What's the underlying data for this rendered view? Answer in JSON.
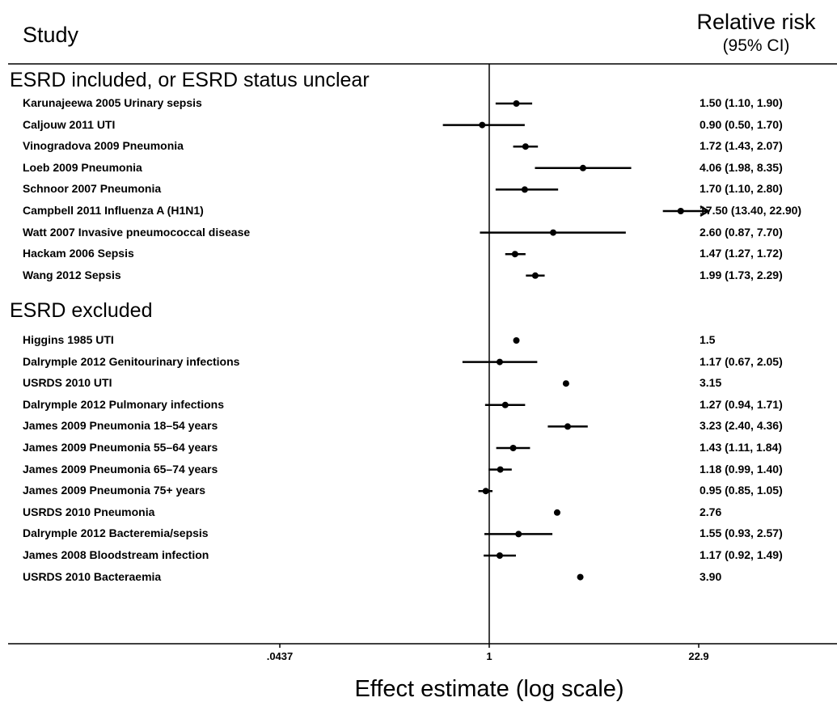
{
  "header": {
    "study": "Study",
    "relative_risk": "Relative risk",
    "ci": "(95% CI)"
  },
  "chart_data": {
    "type": "forest",
    "xlabel": "Effect estimate (log scale)",
    "x_scale": "log",
    "reference_line": 1,
    "xticks": [
      {
        "value": 0.0437,
        "label": ".0437"
      },
      {
        "value": 1,
        "label": "1"
      },
      {
        "value": 22.9,
        "label": "22.9"
      }
    ],
    "xlim": [
      0.0437,
      22.9
    ],
    "groups": [
      {
        "title": "ESRD included, or ESRD status unclear",
        "studies": [
          {
            "label": "Karunajeewa 2005 Urinary sepsis",
            "est": 1.5,
            "lo": 1.1,
            "hi": 1.9,
            "text": "1.50 (1.10, 1.90)"
          },
          {
            "label": "Caljouw 2011 UTI",
            "est": 0.9,
            "lo": 0.5,
            "hi": 1.7,
            "text": "0.90 (0.50, 1.70)"
          },
          {
            "label": "Vinogradova 2009 Pneumonia",
            "est": 1.72,
            "lo": 1.43,
            "hi": 2.07,
            "text": "1.72 (1.43, 2.07)"
          },
          {
            "label": "Loeb 2009 Pneumonia",
            "est": 4.06,
            "lo": 1.98,
            "hi": 8.35,
            "text": "4.06 (1.98, 8.35)"
          },
          {
            "label": "Schnoor 2007 Pneumonia",
            "est": 1.7,
            "lo": 1.1,
            "hi": 2.8,
            "text": "1.70 (1.10, 2.80)"
          },
          {
            "label": "Campbell 2011 Influenza A (H1N1)",
            "est": 17.5,
            "lo": 13.4,
            "hi": 22.9,
            "text": "17.50 (13.40, 22.90)",
            "arrow": true
          },
          {
            "label": "Watt 2007 Invasive pneumococcal disease",
            "est": 2.6,
            "lo": 0.87,
            "hi": 7.7,
            "text": "2.60 (0.87, 7.70)"
          },
          {
            "label": "Hackam 2006 Sepsis",
            "est": 1.47,
            "lo": 1.27,
            "hi": 1.72,
            "text": "1.47 (1.27, 1.72)"
          },
          {
            "label": "Wang 2012 Sepsis",
            "est": 1.99,
            "lo": 1.73,
            "hi": 2.29,
            "text": "1.99 (1.73, 2.29)"
          }
        ]
      },
      {
        "title": "ESRD excluded",
        "studies": [
          {
            "label": "Higgins 1985 UTI",
            "est": 1.5,
            "lo": null,
            "hi": null,
            "text": "1.5"
          },
          {
            "label": "Dalrymple 2012 Genitourinary infections",
            "est": 1.17,
            "lo": 0.67,
            "hi": 2.05,
            "text": "1.17 (0.67, 2.05)"
          },
          {
            "label": "USRDS 2010 UTI",
            "est": 3.15,
            "lo": null,
            "hi": null,
            "text": "3.15"
          },
          {
            "label": "Dalrymple 2012 Pulmonary infections",
            "est": 1.27,
            "lo": 0.94,
            "hi": 1.71,
            "text": "1.27 (0.94, 1.71)"
          },
          {
            "label": "James 2009 Pneumonia 18–54 years",
            "est": 3.23,
            "lo": 2.4,
            "hi": 4.36,
            "text": "3.23 (2.40, 4.36)"
          },
          {
            "label": "James 2009 Pneumonia 55–64 years",
            "est": 1.43,
            "lo": 1.11,
            "hi": 1.84,
            "text": "1.43 (1.11, 1.84)"
          },
          {
            "label": "James 2009 Pneumonia 65–74 years",
            "est": 1.18,
            "lo": 0.99,
            "hi": 1.4,
            "text": "1.18 (0.99, 1.40)"
          },
          {
            "label": "James 2009 Pneumonia 75+ years",
            "est": 0.95,
            "lo": 0.85,
            "hi": 1.05,
            "text": "0.95 (0.85, 1.05)"
          },
          {
            "label": "USRDS 2010 Pneumonia",
            "est": 2.76,
            "lo": null,
            "hi": null,
            "text": "2.76"
          },
          {
            "label": "Dalrymple 2012 Bacteremia/sepsis",
            "est": 1.55,
            "lo": 0.93,
            "hi": 2.57,
            "text": "1.55 (0.93, 2.57)"
          },
          {
            "label": "James 2008 Bloodstream infection",
            "est": 1.17,
            "lo": 0.92,
            "hi": 1.49,
            "text": "1.17 (0.92, 1.49)"
          },
          {
            "label": "USRDS 2010 Bacteraemia",
            "est": 3.9,
            "lo": null,
            "hi": null,
            "text": "3.90"
          }
        ]
      }
    ]
  }
}
